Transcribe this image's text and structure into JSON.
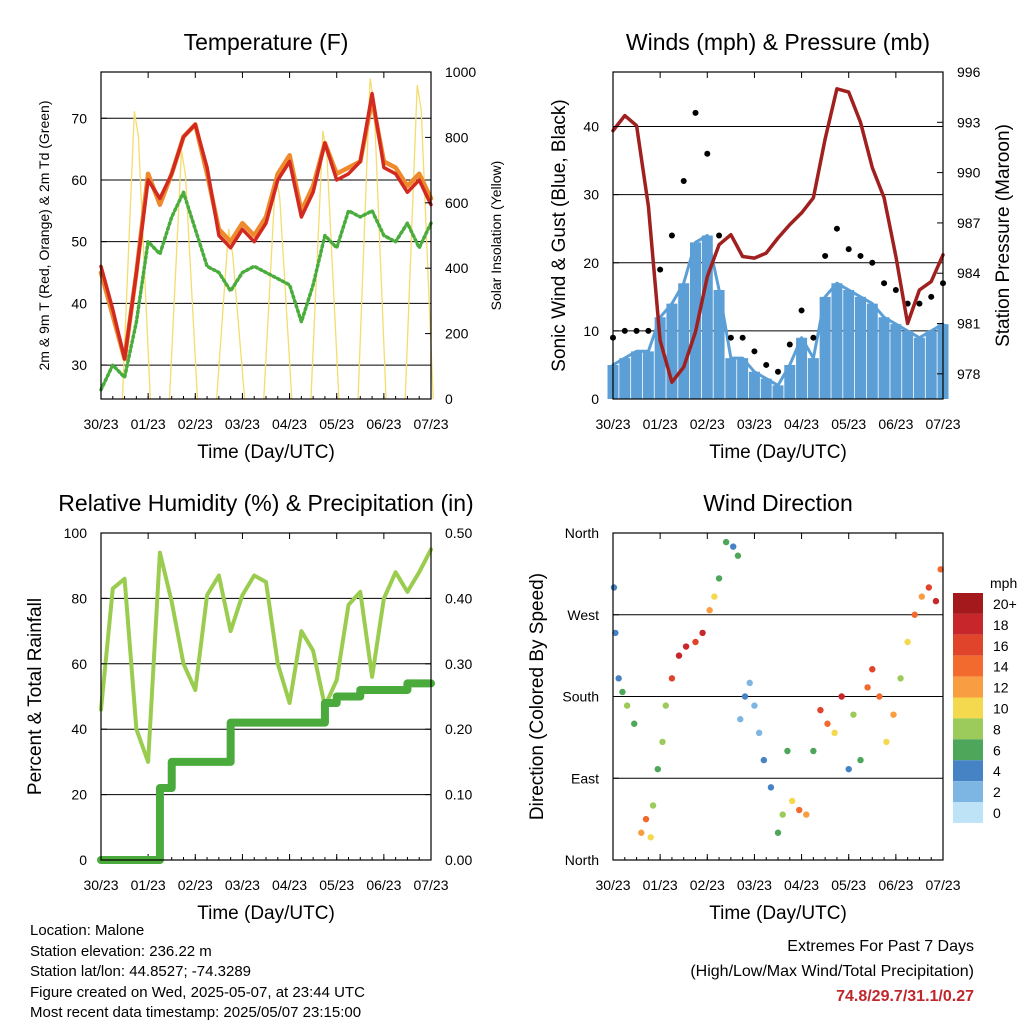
{
  "x_ticks": [
    "30/23",
    "01/23",
    "02/23",
    "03/23",
    "04/23",
    "05/23",
    "06/23",
    "07/23"
  ],
  "x_label": "Time (Day/UTC)",
  "colors": {
    "temp_2m": "#ee8a2b",
    "temp_9m": "#d22a20",
    "dewpoint": "#4aac3c",
    "solar": "#f4dc6e",
    "wind": "#5b9fd6",
    "gust": "#000000",
    "pressure": "#a0201f",
    "rh": "#9acd4f",
    "precip": "#4aab3c"
  },
  "chart_data": [
    {
      "id": "temperature",
      "type": "line",
      "title": "Temperature (F)",
      "xlabel": "Time (Day/UTC)",
      "ylabel": "2m & 9m T (Red, Orange) & 2m Td (Green)",
      "y2label": "Solar Insolation (Yellow)",
      "ylim": [
        24.5,
        77.5
      ],
      "yticks": [
        30,
        40,
        50,
        60,
        70
      ],
      "y2lim": [
        0,
        1000
      ],
      "y2ticks": [
        0,
        200,
        400,
        600,
        800,
        1000
      ],
      "x": [
        0,
        0.25,
        0.5,
        0.75,
        1,
        1.25,
        1.5,
        1.75,
        2,
        2.25,
        2.5,
        2.75,
        3,
        3.25,
        3.5,
        3.75,
        4,
        4.25,
        4.5,
        4.75,
        5,
        5.25,
        5.5,
        5.75,
        6,
        6.25,
        6.5,
        6.75,
        7
      ],
      "series": [
        {
          "name": "9m T",
          "values": [
            46,
            39,
            31,
            45,
            60,
            57,
            61,
            67,
            69,
            62,
            51,
            49,
            52,
            50,
            53,
            60,
            63,
            54,
            58,
            66,
            60,
            61,
            63,
            74,
            62,
            61,
            58,
            60,
            56
          ]
        },
        {
          "name": "2m T",
          "values": [
            45,
            38,
            31,
            45,
            61,
            56,
            61,
            67,
            69,
            61,
            52,
            50,
            53,
            51,
            54,
            61,
            64,
            55,
            59,
            66,
            61,
            62,
            63,
            73,
            63,
            62,
            59,
            61,
            57
          ]
        },
        {
          "name": "2m Td",
          "values": [
            26,
            30,
            28,
            37,
            50,
            48,
            54,
            58,
            52,
            46,
            45,
            42,
            45,
            46,
            45,
            44,
            43,
            37,
            43,
            51,
            49,
            55,
            54,
            55,
            51,
            50,
            53,
            49,
            53
          ]
        }
      ],
      "solar_peaks": [
        {
          "day": 0.75,
          "value": 880
        },
        {
          "day": 1.75,
          "value": 760
        },
        {
          "day": 2.75,
          "value": 520
        },
        {
          "day": 3.75,
          "value": 690
        },
        {
          "day": 4.75,
          "value": 820
        },
        {
          "day": 5.75,
          "value": 980
        },
        {
          "day": 6.75,
          "value": 960
        }
      ]
    },
    {
      "id": "winds",
      "type": "scatter",
      "title": "Winds (mph) & Pressure (mb)",
      "xlabel": "Time (Day/UTC)",
      "ylabel": "Sonic Wind & Gust (Blue, Black)",
      "y2label": "Station Pressure (Maroon)",
      "ylim": [
        0,
        48
      ],
      "yticks": [
        0,
        10,
        20,
        30,
        40
      ],
      "y2lim": [
        976.5,
        996
      ],
      "y2ticks": [
        978,
        981,
        984,
        987,
        990,
        993,
        996
      ],
      "x": [
        0,
        0.25,
        0.5,
        0.75,
        1,
        1.25,
        1.5,
        1.75,
        2,
        2.25,
        2.5,
        2.75,
        3,
        3.25,
        3.5,
        3.75,
        4,
        4.25,
        4.5,
        4.75,
        5,
        5.25,
        5.5,
        5.75,
        6,
        6.25,
        6.5,
        6.75,
        7
      ],
      "series": [
        {
          "name": "Wind",
          "values": [
            5,
            6,
            7,
            7,
            12,
            14,
            17,
            23,
            24,
            16,
            6,
            6,
            4,
            3,
            2,
            5,
            9,
            6,
            15,
            17,
            16,
            15,
            14,
            12,
            11,
            10,
            9,
            10,
            11
          ]
        },
        {
          "name": "Gust",
          "values": [
            9,
            10,
            10,
            10,
            19,
            24,
            32,
            42,
            36,
            24,
            9,
            9,
            7,
            5,
            4,
            8,
            13,
            9,
            21,
            25,
            22,
            21,
            20,
            17,
            16,
            14,
            14,
            15,
            17
          ]
        },
        {
          "name": "Pressure",
          "values": [
            992.5,
            993.4,
            992.8,
            988,
            980,
            977.5,
            978.4,
            980.5,
            983.8,
            985.7,
            986.3,
            985,
            984.9,
            985.2,
            986.1,
            986.9,
            987.6,
            988.5,
            992,
            995,
            994.8,
            993,
            990.3,
            988.5,
            985,
            981,
            983,
            983.5,
            985.1
          ]
        }
      ]
    },
    {
      "id": "rh_precip",
      "type": "line",
      "title": "Relative Humidity (%) & Precipitation (in)",
      "xlabel": "Time (Day/UTC)",
      "ylabel": "Percent & Total Rainfall",
      "ylim": [
        0,
        100
      ],
      "yticks": [
        0,
        20,
        40,
        60,
        80,
        100
      ],
      "y2lim": [
        0,
        0.5
      ],
      "y2ticks": [
        "0.00",
        "0.10",
        "0.20",
        "0.30",
        "0.40",
        "0.50"
      ],
      "x": [
        0,
        0.25,
        0.5,
        0.75,
        1,
        1.25,
        1.5,
        1.75,
        2,
        2.25,
        2.5,
        2.75,
        3,
        3.25,
        3.5,
        3.75,
        4,
        4.25,
        4.5,
        4.75,
        5,
        5.25,
        5.5,
        5.75,
        6,
        6.25,
        6.5,
        6.75,
        7
      ],
      "series": [
        {
          "name": "RH",
          "values": [
            46,
            83,
            86,
            40,
            30,
            94,
            79,
            60,
            52,
            81,
            87,
            70,
            81,
            87,
            85,
            60,
            48,
            70,
            64,
            47,
            55,
            78,
            82,
            56,
            80,
            88,
            82,
            88,
            95
          ]
        },
        {
          "name": "Precip",
          "values": [
            0,
            0,
            0,
            0,
            0,
            0.11,
            0.15,
            0.15,
            0.15,
            0.15,
            0.15,
            0.21,
            0.21,
            0.21,
            0.21,
            0.21,
            0.21,
            0.21,
            0.21,
            0.24,
            0.25,
            0.25,
            0.26,
            0.26,
            0.26,
            0.26,
            0.27,
            0.27,
            0.27
          ]
        }
      ]
    },
    {
      "id": "wind_direction",
      "type": "scatter",
      "title": "Wind Direction",
      "xlabel": "Time (Day/UTC)",
      "ylabel": "Direction (Colored By Speed)",
      "ylim": [
        0,
        360
      ],
      "ytick_labels": [
        "North",
        "East",
        "South",
        "West",
        "North"
      ],
      "ytick_values": [
        0,
        90,
        180,
        270,
        360
      ],
      "legend_title": "mph",
      "legend_labels": [
        "20+",
        "18",
        "16",
        "14",
        "12",
        "10",
        "8",
        "6",
        "4",
        "2",
        "0"
      ],
      "legend_colors": [
        "#a3191c",
        "#c7262a",
        "#e0442b",
        "#f26a2e",
        "#f89d42",
        "#f4d94f",
        "#9ccb5c",
        "#4ea65a",
        "#4683c4",
        "#7db6e2",
        "#bfe3f6"
      ],
      "legend_placement": "right",
      "points": [
        [
          0.02,
          300,
          5
        ],
        [
          0.05,
          250,
          4
        ],
        [
          0.12,
          200,
          5
        ],
        [
          0.2,
          185,
          7
        ],
        [
          0.3,
          170,
          8
        ],
        [
          0.45,
          150,
          6
        ],
        [
          0.6,
          30,
          12
        ],
        [
          0.7,
          45,
          14
        ],
        [
          0.8,
          25,
          10
        ],
        [
          0.85,
          60,
          8
        ],
        [
          0.95,
          100,
          6
        ],
        [
          1.05,
          130,
          8
        ],
        [
          1.12,
          170,
          9
        ],
        [
          1.25,
          200,
          16
        ],
        [
          1.4,
          225,
          18
        ],
        [
          1.55,
          235,
          19
        ],
        [
          1.75,
          240,
          17
        ],
        [
          1.9,
          250,
          18
        ],
        [
          2.05,
          275,
          12
        ],
        [
          2.15,
          290,
          10
        ],
        [
          2.25,
          310,
          7
        ],
        [
          2.4,
          350,
          6
        ],
        [
          2.55,
          345,
          5
        ],
        [
          2.65,
          335,
          6
        ],
        [
          2.7,
          155,
          3
        ],
        [
          2.8,
          180,
          4
        ],
        [
          2.9,
          195,
          2
        ],
        [
          3.0,
          170,
          3
        ],
        [
          3.1,
          140,
          2
        ],
        [
          3.2,
          110,
          4
        ],
        [
          3.35,
          80,
          5
        ],
        [
          3.5,
          30,
          7
        ],
        [
          3.6,
          50,
          8
        ],
        [
          3.7,
          120,
          6
        ],
        [
          3.8,
          65,
          10
        ],
        [
          3.95,
          55,
          15
        ],
        [
          4.1,
          50,
          13
        ],
        [
          4.25,
          120,
          6
        ],
        [
          4.4,
          165,
          16
        ],
        [
          4.55,
          150,
          14
        ],
        [
          4.7,
          140,
          11
        ],
        [
          4.85,
          180,
          18
        ],
        [
          5.0,
          100,
          4
        ],
        [
          5.1,
          160,
          9
        ],
        [
          5.25,
          110,
          7
        ],
        [
          5.4,
          190,
          15
        ],
        [
          5.5,
          210,
          17
        ],
        [
          5.65,
          180,
          14
        ],
        [
          5.8,
          130,
          10
        ],
        [
          5.95,
          160,
          12
        ],
        [
          6.1,
          200,
          9
        ],
        [
          6.25,
          240,
          11
        ],
        [
          6.4,
          270,
          14
        ],
        [
          6.55,
          290,
          13
        ],
        [
          6.7,
          300,
          16
        ],
        [
          6.85,
          285,
          18
        ],
        [
          6.95,
          320,
          15
        ]
      ]
    }
  ],
  "footer": {
    "location": "Location: Malone",
    "elevation": "Station elevation: 236.22 m",
    "latlon": "Station lat/lon: 44.8527; -74.3289",
    "created": "Figure created on Wed, 2025-05-07, at 23:44 UTC",
    "recent": "Most recent data timestamp: 2025/05/07 23:15:00",
    "extremes_title": "Extremes For Past 7 Days",
    "extremes_desc": "(High/Low/Max Wind/Total Precipitation)",
    "extremes_values": "74.8/29.7/31.1/0.27"
  }
}
